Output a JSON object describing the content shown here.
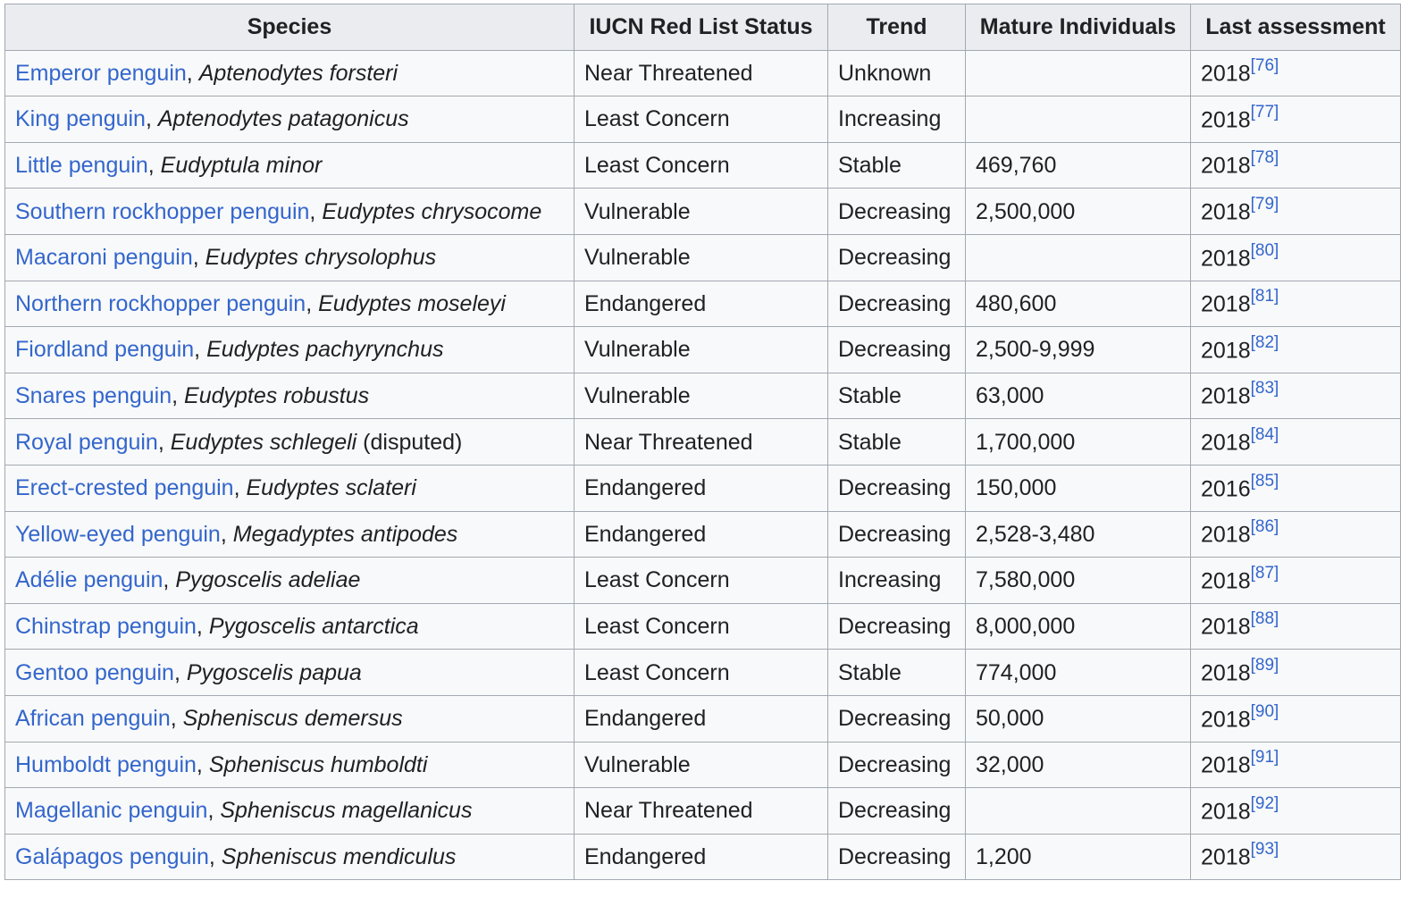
{
  "table": {
    "headers": [
      "Species",
      "IUCN Red List Status",
      "Trend",
      "Mature Individuals",
      "Last assessment"
    ],
    "rows": [
      {
        "common": "Emperor penguin",
        "scientific": "Aptenodytes forsteri",
        "note": "",
        "status": "Near Threatened",
        "trend": "Unknown",
        "mature": "",
        "year": "2018",
        "ref": "[76]"
      },
      {
        "common": "King penguin",
        "scientific": "Aptenodytes patagonicus",
        "note": "",
        "status": "Least Concern",
        "trend": "Increasing",
        "mature": "",
        "year": "2018",
        "ref": "[77]"
      },
      {
        "common": "Little penguin",
        "scientific": "Eudyptula minor",
        "note": "",
        "status": "Least Concern",
        "trend": "Stable",
        "mature": "469,760",
        "year": "2018",
        "ref": "[78]"
      },
      {
        "common": "Southern rockhopper penguin",
        "scientific": "Eudyptes chrysocome",
        "note": "",
        "status": "Vulnerable",
        "trend": "Decreasing",
        "mature": "2,500,000",
        "year": "2018",
        "ref": "[79]"
      },
      {
        "common": "Macaroni penguin",
        "scientific": "Eudyptes chrysolophus",
        "note": "",
        "status": "Vulnerable",
        "trend": "Decreasing",
        "mature": "",
        "year": "2018",
        "ref": "[80]"
      },
      {
        "common": "Northern rockhopper penguin",
        "scientific": "Eudyptes moseleyi",
        "note": "",
        "status": "Endangered",
        "trend": "Decreasing",
        "mature": "480,600",
        "year": "2018",
        "ref": "[81]"
      },
      {
        "common": "Fiordland penguin",
        "scientific": "Eudyptes pachyrynchus",
        "note": "",
        "status": "Vulnerable",
        "trend": "Decreasing",
        "mature": "2,500-9,999",
        "year": "2018",
        "ref": "[82]"
      },
      {
        "common": "Snares penguin",
        "scientific": "Eudyptes robustus",
        "note": "",
        "status": "Vulnerable",
        "trend": "Stable",
        "mature": "63,000",
        "year": "2018",
        "ref": "[83]"
      },
      {
        "common": "Royal penguin",
        "scientific": "Eudyptes schlegeli",
        "note": " (disputed)",
        "status": "Near Threatened",
        "trend": "Stable",
        "mature": "1,700,000",
        "year": "2018",
        "ref": "[84]"
      },
      {
        "common": "Erect-crested penguin",
        "scientific": "Eudyptes sclateri",
        "note": "",
        "status": "Endangered",
        "trend": "Decreasing",
        "mature": "150,000",
        "year": "2016",
        "ref": "[85]"
      },
      {
        "common": "Yellow-eyed penguin",
        "scientific": "Megadyptes antipodes",
        "note": "",
        "status": "Endangered",
        "trend": "Decreasing",
        "mature": "2,528-3,480",
        "year": "2018",
        "ref": "[86]"
      },
      {
        "common": "Adélie penguin",
        "scientific": "Pygoscelis adeliae",
        "note": "",
        "status": "Least Concern",
        "trend": "Increasing",
        "mature": "7,580,000",
        "year": "2018",
        "ref": "[87]"
      },
      {
        "common": "Chinstrap penguin",
        "scientific": "Pygoscelis antarctica",
        "note": "",
        "status": "Least Concern",
        "trend": "Decreasing",
        "mature": "8,000,000",
        "year": "2018",
        "ref": "[88]"
      },
      {
        "common": "Gentoo penguin",
        "scientific": "Pygoscelis papua",
        "note": "",
        "status": "Least Concern",
        "trend": "Stable",
        "mature": "774,000",
        "year": "2018",
        "ref": "[89]"
      },
      {
        "common": "African penguin",
        "scientific": "Spheniscus demersus",
        "note": "",
        "status": "Endangered",
        "trend": "Decreasing",
        "mature": "50,000",
        "year": "2018",
        "ref": "[90]"
      },
      {
        "common": "Humboldt penguin",
        "scientific": "Spheniscus humboldti",
        "note": "",
        "status": "Vulnerable",
        "trend": "Decreasing",
        "mature": "32,000",
        "year": "2018",
        "ref": "[91]"
      },
      {
        "common": "Magellanic penguin",
        "scientific": "Spheniscus magellanicus",
        "note": "",
        "status": "Near Threatened",
        "trend": "Decreasing",
        "mature": "",
        "year": "2018",
        "ref": "[92]"
      },
      {
        "common": "Galápagos penguin",
        "scientific": "Spheniscus mendiculus",
        "note": "",
        "status": "Endangered",
        "trend": "Decreasing",
        "mature": "1,200",
        "year": "2018",
        "ref": "[93]"
      }
    ]
  },
  "colors": {
    "link": "#3366cc",
    "header_bg": "#eaecf0",
    "cell_bg": "#f8f9fa",
    "border": "#a2a9b1",
    "text": "#202122"
  }
}
